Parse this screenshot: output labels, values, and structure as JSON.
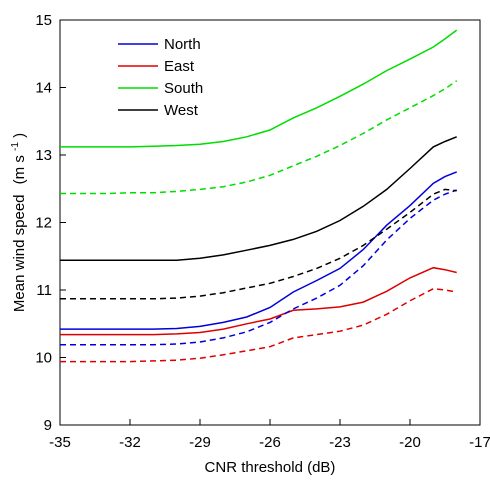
{
  "chart_data": {
    "type": "line",
    "xlabel": "CNR threshold (dB)",
    "ylabel": "Mean wind speed",
    "ylabel_unit": "(m s",
    "ylabel_unit_exp": "-1",
    "ylabel_unit_close": ")",
    "xlim": [
      -35,
      -17
    ],
    "ylim": [
      9,
      15
    ],
    "xticks": [
      -35,
      -32,
      -29,
      -26,
      -23,
      -20,
      -17
    ],
    "yticks": [
      9,
      10,
      11,
      12,
      13,
      14,
      15
    ],
    "grid": false,
    "legend_position": "top-left",
    "x": [
      -35,
      -34,
      -33,
      -32,
      -31,
      -30,
      -29,
      -28,
      -27,
      -26,
      -25,
      -24,
      -23,
      -22,
      -21,
      -20,
      -19,
      -18.5,
      -18
    ],
    "series": [
      {
        "name": "North",
        "color": "#0000dd",
        "style": "solid",
        "values": [
          10.42,
          10.42,
          10.42,
          10.42,
          10.42,
          10.43,
          10.46,
          10.52,
          10.6,
          10.74,
          10.97,
          11.14,
          11.32,
          11.6,
          11.96,
          12.25,
          12.58,
          12.68,
          12.75
        ]
      },
      {
        "name": "East",
        "color": "#dd0000",
        "style": "solid",
        "values": [
          10.34,
          10.34,
          10.34,
          10.34,
          10.34,
          10.35,
          10.37,
          10.42,
          10.5,
          10.57,
          10.7,
          10.72,
          10.75,
          10.82,
          10.98,
          11.18,
          11.33,
          11.3,
          11.26
        ]
      },
      {
        "name": "South",
        "color": "#00dd00",
        "style": "solid",
        "values": [
          13.12,
          13.12,
          13.12,
          13.12,
          13.13,
          13.14,
          13.16,
          13.2,
          13.27,
          13.37,
          13.55,
          13.7,
          13.87,
          14.05,
          14.25,
          14.42,
          14.6,
          14.72,
          14.85
        ]
      },
      {
        "name": "West",
        "color": "#000000",
        "style": "solid",
        "values": [
          11.44,
          11.44,
          11.44,
          11.44,
          11.44,
          11.44,
          11.47,
          11.52,
          11.59,
          11.66,
          11.75,
          11.87,
          12.03,
          12.24,
          12.49,
          12.8,
          13.12,
          13.2,
          13.27
        ]
      },
      {
        "name": "",
        "color": "#0000dd",
        "style": "dashed",
        "values": [
          10.19,
          10.19,
          10.19,
          10.19,
          10.19,
          10.2,
          10.23,
          10.29,
          10.38,
          10.52,
          10.72,
          10.88,
          11.07,
          11.36,
          11.74,
          12.06,
          12.33,
          12.42,
          12.48
        ]
      },
      {
        "name": "",
        "color": "#dd0000",
        "style": "dashed",
        "values": [
          9.94,
          9.94,
          9.94,
          9.94,
          9.95,
          9.96,
          9.99,
          10.04,
          10.1,
          10.16,
          10.29,
          10.34,
          10.39,
          10.48,
          10.64,
          10.84,
          11.02,
          11.0,
          10.97
        ]
      },
      {
        "name": "",
        "color": "#00dd00",
        "style": "dashed",
        "values": [
          12.43,
          12.43,
          12.43,
          12.44,
          12.44,
          12.46,
          12.49,
          12.53,
          12.6,
          12.7,
          12.84,
          12.98,
          13.14,
          13.32,
          13.52,
          13.7,
          13.88,
          13.98,
          14.1
        ]
      },
      {
        "name": "",
        "color": "#000000",
        "style": "dashed",
        "values": [
          10.87,
          10.87,
          10.87,
          10.87,
          10.87,
          10.88,
          10.91,
          10.96,
          11.03,
          11.1,
          11.2,
          11.32,
          11.47,
          11.66,
          11.9,
          12.15,
          12.42,
          12.49,
          12.47
        ]
      }
    ]
  }
}
